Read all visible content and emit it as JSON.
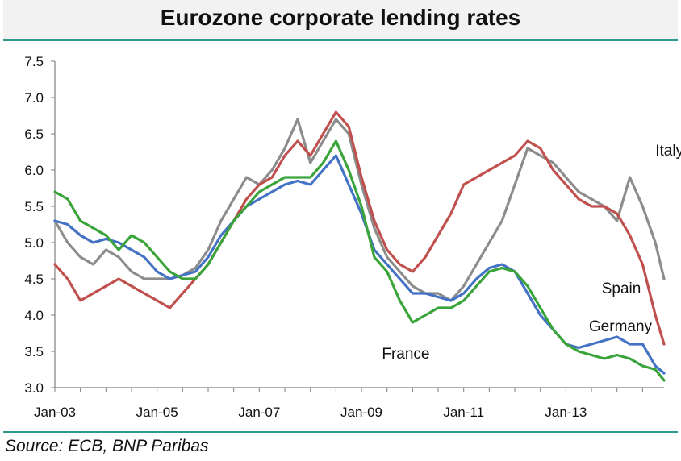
{
  "header": {
    "title": "Eurozone corporate lending rates"
  },
  "footer": {
    "source": "Source: ECB, BNP Paribas"
  },
  "chart_data": {
    "type": "line",
    "title": "Eurozone corporate lending rates",
    "xlabel": "",
    "ylabel": "",
    "ylim": [
      3.0,
      7.5
    ],
    "yticks": [
      "3.0",
      "3.5",
      "4.0",
      "4.5",
      "5.0",
      "5.5",
      "6.0",
      "6.5",
      "7.0",
      "7.5"
    ],
    "xlim": [
      2003.0,
      2014.92
    ],
    "xticks": [
      {
        "label": "Jan-03",
        "x": 2003
      },
      {
        "label": "Jan-05",
        "x": 2005
      },
      {
        "label": "Jan-07",
        "x": 2007
      },
      {
        "label": "Jan-09",
        "x": 2009
      },
      {
        "label": "Jan-11",
        "x": 2011
      },
      {
        "label": "Jan-13",
        "x": 2013
      }
    ],
    "grid": false,
    "series": [
      {
        "name": "Italy",
        "label": "Italy",
        "color": "#8c8c8c",
        "label_at": [
          2014.75,
          6.2
        ],
        "x": [
          2003.0,
          2003.25,
          2003.5,
          2003.75,
          2004.0,
          2004.25,
          2004.5,
          2004.75,
          2005.0,
          2005.25,
          2005.5,
          2005.75,
          2006.0,
          2006.25,
          2006.5,
          2006.75,
          2007.0,
          2007.25,
          2007.5,
          2007.75,
          2008.0,
          2008.25,
          2008.5,
          2008.75,
          2009.0,
          2009.25,
          2009.5,
          2009.75,
          2010.0,
          2010.25,
          2010.5,
          2010.75,
          2011.0,
          2011.25,
          2011.5,
          2011.75,
          2012.0,
          2012.25,
          2012.5,
          2012.75,
          2013.0,
          2013.25,
          2013.5,
          2013.75,
          2014.0,
          2014.25,
          2014.5,
          2014.75,
          2014.92
        ],
        "values": [
          5.3,
          5.0,
          4.8,
          4.7,
          4.9,
          4.8,
          4.6,
          4.5,
          4.5,
          4.5,
          4.55,
          4.65,
          4.9,
          5.3,
          5.6,
          5.9,
          5.8,
          6.0,
          6.3,
          6.7,
          6.1,
          6.4,
          6.7,
          6.5,
          5.8,
          5.2,
          4.8,
          4.6,
          4.4,
          4.3,
          4.3,
          4.2,
          4.4,
          4.7,
          5.0,
          5.3,
          5.8,
          6.3,
          6.2,
          6.1,
          5.9,
          5.7,
          5.6,
          5.5,
          5.3,
          5.9,
          5.5,
          5.0,
          4.5
        ]
      },
      {
        "name": "Spain",
        "label": "Spain",
        "color": "#c0504d",
        "label_at": [
          2013.7,
          4.3
        ],
        "x": [
          2003.0,
          2003.25,
          2003.5,
          2003.75,
          2004.0,
          2004.25,
          2004.5,
          2004.75,
          2005.0,
          2005.25,
          2005.5,
          2005.75,
          2006.0,
          2006.25,
          2006.5,
          2006.75,
          2007.0,
          2007.25,
          2007.5,
          2007.75,
          2008.0,
          2008.25,
          2008.5,
          2008.75,
          2009.0,
          2009.25,
          2009.5,
          2009.75,
          2010.0,
          2010.25,
          2010.5,
          2010.75,
          2011.0,
          2011.25,
          2011.5,
          2011.75,
          2012.0,
          2012.25,
          2012.5,
          2012.75,
          2013.0,
          2013.25,
          2013.5,
          2013.75,
          2014.0,
          2014.25,
          2014.5,
          2014.75,
          2014.92
        ],
        "values": [
          4.7,
          4.5,
          4.2,
          4.3,
          4.4,
          4.5,
          4.4,
          4.3,
          4.2,
          4.1,
          4.3,
          4.5,
          4.7,
          5.0,
          5.3,
          5.6,
          5.8,
          5.9,
          6.2,
          6.4,
          6.2,
          6.5,
          6.8,
          6.6,
          5.9,
          5.3,
          4.9,
          4.7,
          4.6,
          4.8,
          5.1,
          5.4,
          5.8,
          5.9,
          6.0,
          6.1,
          6.2,
          6.4,
          6.3,
          6.0,
          5.8,
          5.6,
          5.5,
          5.5,
          5.4,
          5.1,
          4.7,
          4.0,
          3.6
        ]
      },
      {
        "name": "Germany",
        "label": "Germany",
        "color": "#4472c4",
        "label_at": [
          2013.45,
          3.78
        ],
        "x": [
          2003.0,
          2003.25,
          2003.5,
          2003.75,
          2004.0,
          2004.25,
          2004.5,
          2004.75,
          2005.0,
          2005.25,
          2005.5,
          2005.75,
          2006.0,
          2006.25,
          2006.5,
          2006.75,
          2007.0,
          2007.25,
          2007.5,
          2007.75,
          2008.0,
          2008.25,
          2008.5,
          2008.75,
          2009.0,
          2009.25,
          2009.5,
          2009.75,
          2010.0,
          2010.25,
          2010.5,
          2010.75,
          2011.0,
          2011.25,
          2011.5,
          2011.75,
          2012.0,
          2012.25,
          2012.5,
          2012.75,
          2013.0,
          2013.25,
          2013.5,
          2013.75,
          2014.0,
          2014.25,
          2014.5,
          2014.75,
          2014.92
        ],
        "values": [
          5.3,
          5.25,
          5.1,
          5.0,
          5.05,
          5.0,
          4.9,
          4.8,
          4.6,
          4.5,
          4.55,
          4.6,
          4.8,
          5.1,
          5.3,
          5.5,
          5.6,
          5.7,
          5.8,
          5.85,
          5.8,
          6.0,
          6.2,
          5.8,
          5.4,
          4.9,
          4.7,
          4.5,
          4.3,
          4.3,
          4.25,
          4.2,
          4.3,
          4.5,
          4.65,
          4.7,
          4.6,
          4.3,
          4.0,
          3.8,
          3.6,
          3.55,
          3.6,
          3.65,
          3.7,
          3.6,
          3.6,
          3.3,
          3.2
        ]
      },
      {
        "name": "France",
        "label": "France",
        "color": "#3aa43a",
        "label_at": [
          2009.4,
          3.4
        ],
        "x": [
          2003.0,
          2003.25,
          2003.5,
          2003.75,
          2004.0,
          2004.25,
          2004.5,
          2004.75,
          2005.0,
          2005.25,
          2005.5,
          2005.75,
          2006.0,
          2006.25,
          2006.5,
          2006.75,
          2007.0,
          2007.25,
          2007.5,
          2007.75,
          2008.0,
          2008.25,
          2008.5,
          2008.75,
          2009.0,
          2009.25,
          2009.5,
          2009.75,
          2010.0,
          2010.25,
          2010.5,
          2010.75,
          2011.0,
          2011.25,
          2011.5,
          2011.75,
          2012.0,
          2012.25,
          2012.5,
          2012.75,
          2013.0,
          2013.25,
          2013.5,
          2013.75,
          2014.0,
          2014.25,
          2014.5,
          2014.75,
          2014.92
        ],
        "values": [
          5.7,
          5.6,
          5.3,
          5.2,
          5.1,
          4.9,
          5.1,
          5.0,
          4.8,
          4.6,
          4.5,
          4.5,
          4.7,
          5.0,
          5.3,
          5.5,
          5.7,
          5.8,
          5.9,
          5.9,
          5.9,
          6.1,
          6.4,
          6.0,
          5.5,
          4.8,
          4.6,
          4.2,
          3.9,
          4.0,
          4.1,
          4.1,
          4.2,
          4.4,
          4.6,
          4.65,
          4.6,
          4.4,
          4.1,
          3.8,
          3.6,
          3.5,
          3.45,
          3.4,
          3.45,
          3.4,
          3.3,
          3.25,
          3.1
        ]
      }
    ]
  }
}
